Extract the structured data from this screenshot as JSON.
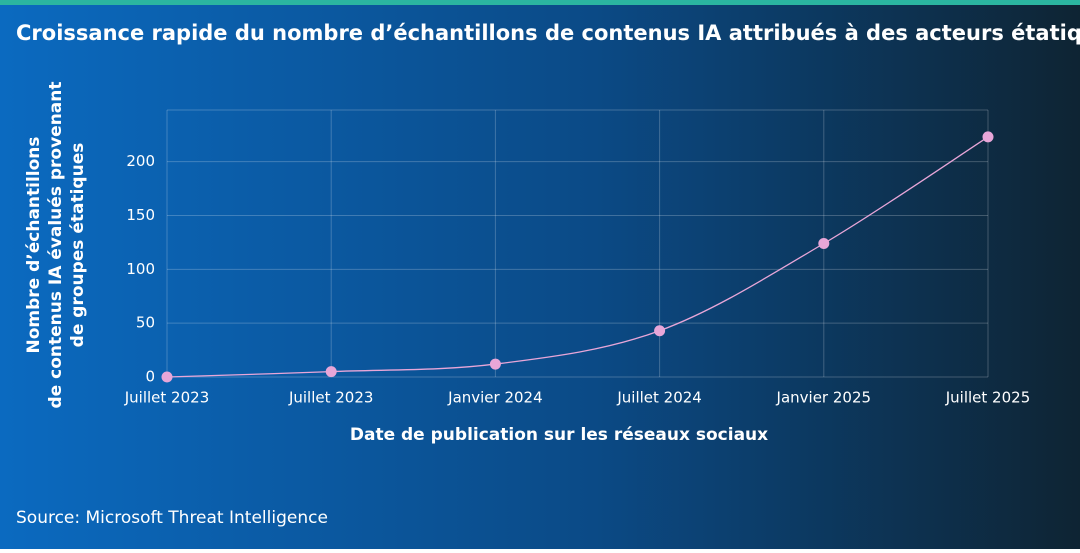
{
  "chart_data": {
    "type": "line",
    "title": "Croissance rapide du nombre d’échantillons de contenus IA attribués à des acteurs étatiques",
    "y_label": [
      "Nombre d’échantillons",
      "de contenus IA évalués provenant",
      "de groupes étatiques"
    ],
    "x_label": "Date de publication sur les réseaux sociaux",
    "source": "Source: Microsoft Threat Intelligence",
    "categories": [
      "Juillet 2023",
      "Juillet 2023",
      "Janvier 2024",
      "Juillet 2024",
      "Janvier 2025",
      "Juillet 2025"
    ],
    "values": [
      0,
      5,
      12,
      43,
      124,
      223
    ],
    "color": "#e8a6d8",
    "ylim": [
      0,
      248
    ],
    "yticks": [
      0,
      50,
      100,
      150,
      200
    ],
    "grid": true
  }
}
